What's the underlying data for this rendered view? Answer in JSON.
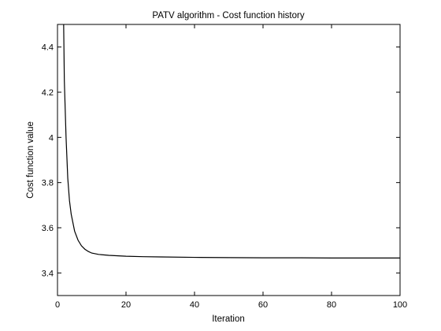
{
  "chart_data": {
    "type": "line",
    "title": "PATV algorithm - Cost function history",
    "xlabel": "Iteration",
    "ylabel": "Cost function value",
    "xlim": [
      0,
      100
    ],
    "ylim": [
      3.3,
      4.5
    ],
    "xticks": [
      0,
      20,
      40,
      60,
      80,
      100
    ],
    "xtick_labels": [
      "0",
      "20",
      "40",
      "60",
      "80",
      "100"
    ],
    "yticks": [
      3.4,
      3.6,
      3.8,
      4.0,
      4.2,
      4.4
    ],
    "ytick_labels": [
      "3.4",
      "3.6",
      "3.8",
      "4",
      "4.2",
      "4.4"
    ],
    "grid": false,
    "line_color": "#000000",
    "series": [
      {
        "x": [
          1.8,
          2,
          2.5,
          3,
          3.5,
          4,
          5,
          6,
          7,
          8,
          9,
          10,
          12,
          15,
          20,
          25,
          30,
          40,
          50,
          60,
          70,
          80,
          90,
          100
        ],
        "y": [
          4.5,
          4.25,
          4.0,
          3.82,
          3.72,
          3.66,
          3.585,
          3.545,
          3.52,
          3.505,
          3.495,
          3.488,
          3.482,
          3.478,
          3.474,
          3.472,
          3.471,
          3.469,
          3.468,
          3.467,
          3.467,
          3.466,
          3.466,
          3.466
        ]
      }
    ]
  }
}
